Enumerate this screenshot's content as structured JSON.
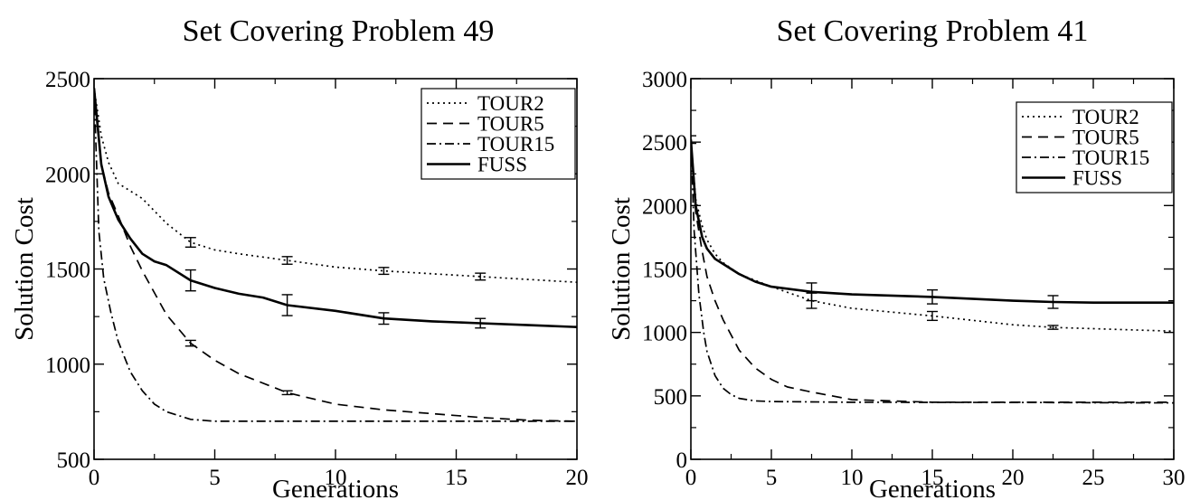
{
  "chart_data": [
    {
      "type": "line",
      "title": "Set Covering Problem 49",
      "xlabel": "Generations",
      "ylabel": "Solution Cost",
      "xlim": [
        0,
        20
      ],
      "ylim": [
        500,
        2500
      ],
      "xticks": [
        0,
        5,
        10,
        15,
        20
      ],
      "yticks": [
        500,
        1000,
        1500,
        2000,
        2500
      ],
      "legend_position": "top-right",
      "series": [
        {
          "name": "TOUR2",
          "style": "dotted",
          "x": [
            0,
            0.3,
            0.6,
            1,
            1.5,
            2,
            3,
            4,
            5,
            6,
            8,
            10,
            12,
            14,
            16,
            18,
            20
          ],
          "values": [
            2450,
            2200,
            2060,
            1950,
            1910,
            1870,
            1740,
            1640,
            1600,
            1580,
            1545,
            1510,
            1490,
            1475,
            1460,
            1445,
            1430
          ],
          "error_bars": [
            {
              "x": 4,
              "y": 1640,
              "err": 25
            },
            {
              "x": 8,
              "y": 1545,
              "err": 20
            },
            {
              "x": 12,
              "y": 1490,
              "err": 18
            },
            {
              "x": 16,
              "y": 1460,
              "err": 18
            }
          ]
        },
        {
          "name": "TOUR5",
          "style": "dashed",
          "x": [
            0,
            0.3,
            0.6,
            1,
            1.5,
            2,
            3,
            4,
            5,
            6,
            8,
            10,
            12,
            14,
            16,
            18,
            20
          ],
          "values": [
            2450,
            2050,
            1900,
            1780,
            1620,
            1490,
            1260,
            1110,
            1020,
            950,
            850,
            790,
            760,
            740,
            720,
            705,
            700
          ],
          "error_bars": [
            {
              "x": 4,
              "y": 1110,
              "err": 15
            },
            {
              "x": 8,
              "y": 850,
              "err": 10
            }
          ]
        },
        {
          "name": "TOUR15",
          "style": "dashdot",
          "x": [
            0,
            0.2,
            0.4,
            0.7,
            1,
            1.5,
            2,
            2.5,
            3,
            4,
            5,
            6,
            8,
            10,
            20
          ],
          "values": [
            2450,
            1700,
            1450,
            1270,
            1120,
            960,
            860,
            790,
            750,
            710,
            700,
            700,
            700,
            700,
            700
          ]
        },
        {
          "name": "FUSS",
          "style": "solid",
          "x": [
            0,
            0.3,
            0.6,
            1,
            1.5,
            2,
            2.5,
            3,
            4,
            5,
            6,
            7,
            8,
            10,
            12,
            14,
            16,
            18,
            20
          ],
          "values": [
            2450,
            2050,
            1880,
            1760,
            1660,
            1580,
            1540,
            1520,
            1440,
            1400,
            1370,
            1350,
            1310,
            1280,
            1240,
            1225,
            1215,
            1205,
            1195
          ],
          "error_bars": [
            {
              "x": 4,
              "y": 1440,
              "err": 55
            },
            {
              "x": 8,
              "y": 1310,
              "err": 55
            },
            {
              "x": 12,
              "y": 1240,
              "err": 30
            },
            {
              "x": 16,
              "y": 1215,
              "err": 25
            }
          ]
        }
      ]
    },
    {
      "type": "line",
      "title": "Set Covering Problem 41",
      "xlabel": "Generations",
      "ylabel": "Solution Cost",
      "xlim": [
        0,
        30
      ],
      "ylim": [
        0,
        3000
      ],
      "xticks": [
        0,
        5,
        10,
        15,
        20,
        25,
        30
      ],
      "yticks": [
        0,
        500,
        1000,
        1500,
        2000,
        2500,
        3000
      ],
      "legend_position": "top-right",
      "series": [
        {
          "name": "TOUR2",
          "style": "dotted",
          "x": [
            0,
            0.3,
            0.7,
            1,
            1.5,
            2,
            3,
            5,
            7.5,
            10,
            15,
            20,
            22.5,
            25,
            30
          ],
          "values": [
            2520,
            2050,
            1840,
            1730,
            1620,
            1550,
            1460,
            1360,
            1250,
            1190,
            1130,
            1060,
            1040,
            1030,
            1010
          ],
          "error_bars": [
            {
              "x": 0,
              "y": 2520,
              "err": 30
            },
            {
              "x": 7.5,
              "y": 1250,
              "err": 60
            },
            {
              "x": 15,
              "y": 1130,
              "err": 35
            },
            {
              "x": 22.5,
              "y": 1040,
              "err": 15
            }
          ]
        },
        {
          "name": "TOUR5",
          "style": "dashed",
          "x": [
            0,
            0.3,
            0.7,
            1,
            1.5,
            2,
            3,
            4,
            5,
            6,
            7.5,
            10,
            15,
            20,
            30
          ],
          "values": [
            2520,
            1950,
            1640,
            1440,
            1250,
            1100,
            860,
            720,
            630,
            570,
            530,
            470,
            450,
            450,
            450
          ]
        },
        {
          "name": "TOUR15",
          "style": "dashdot",
          "x": [
            0,
            0.2,
            0.5,
            0.8,
            1,
            1.5,
            2,
            2.5,
            3,
            4,
            5,
            10,
            20,
            30
          ],
          "values": [
            2520,
            1800,
            1300,
            1000,
            850,
            660,
            560,
            510,
            480,
            460,
            455,
            450,
            448,
            445
          ]
        },
        {
          "name": "FUSS",
          "style": "solid",
          "x": [
            0,
            0.3,
            0.7,
            1,
            1.5,
            2,
            3,
            4,
            5,
            7.5,
            10,
            15,
            20,
            22.5,
            25,
            30
          ],
          "values": [
            2520,
            2000,
            1750,
            1660,
            1580,
            1540,
            1460,
            1400,
            1360,
            1320,
            1300,
            1280,
            1250,
            1240,
            1235,
            1235
          ],
          "error_bars": [
            {
              "x": 7.5,
              "y": 1320,
              "err": 70
            },
            {
              "x": 15,
              "y": 1280,
              "err": 55
            },
            {
              "x": 22.5,
              "y": 1240,
              "err": 50
            }
          ]
        }
      ]
    }
  ]
}
